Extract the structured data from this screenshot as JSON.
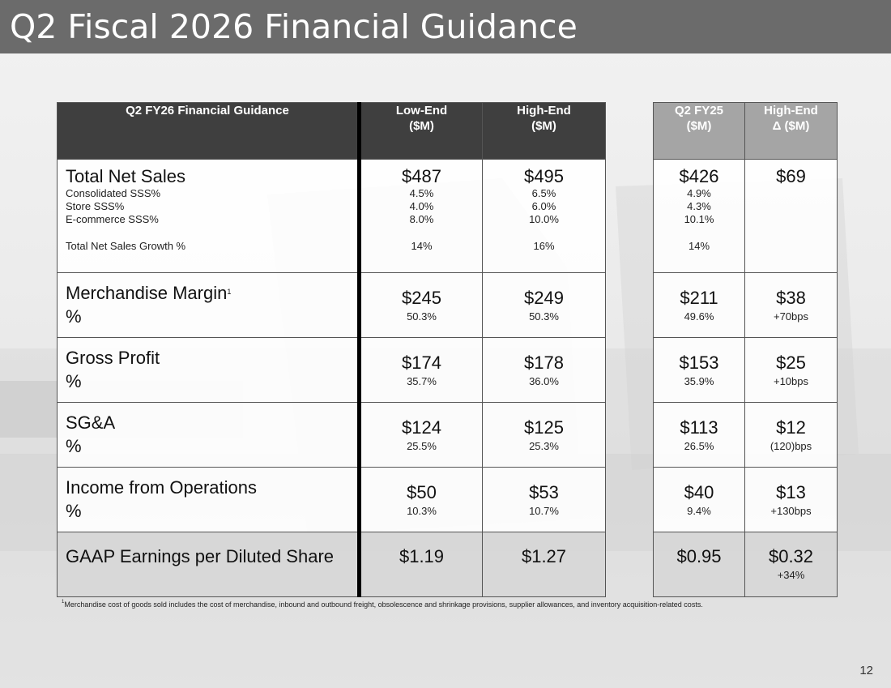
{
  "title": "Q2 Fiscal 2026 Financial Guidance",
  "page_number": "12",
  "footnote": {
    "marker": "1",
    "text": "Merchandise cost of goods sold includes the cost of merchandise, inbound and outbound freight, obsolescence and shrinkage provisions, supplier allowances, and inventory acquisition-related costs."
  },
  "headers": {
    "guidance": "Q2 FY26 Financial Guidance",
    "low_1": "Low-End",
    "low_2": "($M)",
    "high_1": "High-End",
    "high_2": "($M)",
    "py_1": "Q2 FY25",
    "py_2": "($M)",
    "delta_1": "High-End",
    "delta_2": "Δ ($M)"
  },
  "sales": {
    "label": "Total Net Sales",
    "sub_labels": [
      "Consolidated SSS%",
      "Store SSS%",
      "E-commerce SSS%"
    ],
    "growth_label": "Total Net Sales Growth %",
    "low": "$487",
    "low_sub": [
      "4.5%",
      "4.0%",
      "8.0%"
    ],
    "low_growth": "14%",
    "high": "$495",
    "high_sub": [
      "6.5%",
      "6.0%",
      "10.0%"
    ],
    "high_growth": "16%",
    "py": "$426",
    "py_sub": [
      "4.9%",
      "4.3%",
      "10.1%"
    ],
    "py_growth": "14%",
    "delta": "$69"
  },
  "rows": [
    {
      "label": "Merchandise Margin",
      "sup": "1",
      "pct_label": "%",
      "low": "$245",
      "low_pct": "50.3%",
      "high": "$249",
      "high_pct": "50.3%",
      "py": "$211",
      "py_pct": "49.6%",
      "delta": "$38",
      "delta_pct": "+70bps"
    },
    {
      "label": "Gross Profit",
      "sup": "",
      "pct_label": "%",
      "low": "$174",
      "low_pct": "35.7%",
      "high": "$178",
      "high_pct": "36.0%",
      "py": "$153",
      "py_pct": "35.9%",
      "delta": "$25",
      "delta_pct": "+10bps"
    },
    {
      "label": "SG&A",
      "sup": "",
      "pct_label": "%",
      "low": "$124",
      "low_pct": "25.5%",
      "high": "$125",
      "high_pct": "25.3%",
      "py": "$113",
      "py_pct": "26.5%",
      "delta": "$12",
      "delta_pct": "(120)bps"
    },
    {
      "label": "Income from Operations",
      "sup": "",
      "pct_label": "%",
      "low": "$50",
      "low_pct": "10.3%",
      "high": "$53",
      "high_pct": "10.7%",
      "py": "$40",
      "py_pct": "9.4%",
      "delta": "$13",
      "delta_pct": "+130bps"
    }
  ],
  "eps": {
    "label": "GAAP Earnings per Diluted Share",
    "low": "$1.19",
    "high": "$1.27",
    "py": "$0.95",
    "delta": "$0.32",
    "delta_pct": "+34%"
  }
}
